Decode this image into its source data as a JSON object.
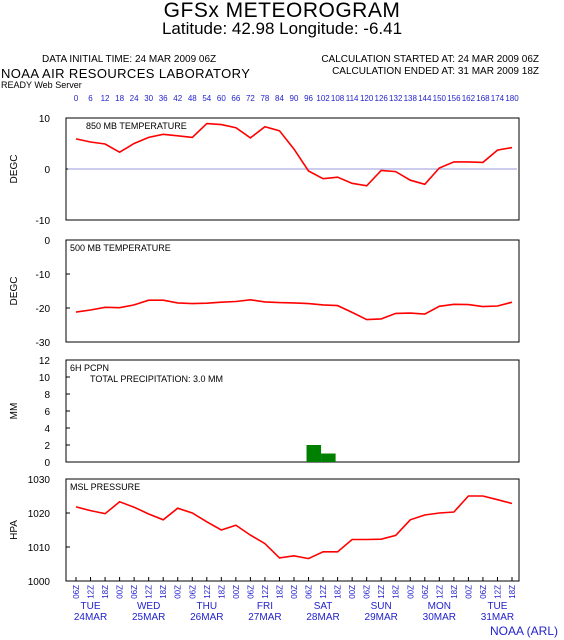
{
  "header": {
    "title": "GFSx METEOROGRAM",
    "coords": "Latitude: 42.98 Longitude:  -6.41",
    "init_time": "DATA INITIAL TIME: 24 MAR 2009 06Z",
    "calc_started": "CALCULATION STARTED AT: 24 MAR 2009 06Z",
    "calc_ended": "CALCULATION ENDED AT: 31 MAR 2009 18Z",
    "lab": "NOAA AIR RESOURCES LABORATORY",
    "server": "READY Web Server"
  },
  "footer": "NOAA (ARL)",
  "colors": {
    "series": "#ff0000",
    "precip": "#008000",
    "axis_text": "#2222cc",
    "zero_line": "#9999dd"
  },
  "chart_data": [
    {
      "type": "line",
      "title": "850 MB  TEMPERATURE",
      "ylabel": "DEGC",
      "ylim": [
        -10,
        10
      ],
      "yticks": [
        -10,
        0,
        10
      ],
      "zero_line": true,
      "forecast_hours": [
        0,
        6,
        12,
        18,
        24,
        30,
        36,
        42,
        48,
        54,
        60,
        66,
        72,
        78,
        84,
        90,
        96,
        102,
        108,
        114,
        120,
        126,
        132,
        138,
        144,
        150,
        156,
        162,
        168,
        174,
        180
      ],
      "values": [
        5.9,
        5.3,
        4.9,
        3.3,
        5.0,
        6.2,
        6.8,
        6.5,
        6.2,
        8.9,
        8.7,
        8.1,
        6.1,
        8.3,
        7.5,
        3.9,
        -0.4,
        -1.9,
        -1.6,
        -2.8,
        -3.3,
        -0.3,
        -0.5,
        -2.2,
        -3.0,
        0.2,
        1.4,
        1.4,
        1.3,
        3.7,
        4.2
      ]
    },
    {
      "type": "line",
      "title": "500 MB  TEMPERATURE",
      "ylabel": "DEGC",
      "ylim": [
        -30,
        0
      ],
      "yticks": [
        -30,
        -20,
        -10,
        0
      ],
      "forecast_hours": [
        0,
        6,
        12,
        18,
        24,
        30,
        36,
        42,
        48,
        54,
        60,
        66,
        72,
        78,
        84,
        90,
        96,
        102,
        108,
        114,
        120,
        126,
        132,
        138,
        144,
        150,
        156,
        162,
        168,
        174,
        180
      ],
      "values": [
        -21.2,
        -20.6,
        -19.8,
        -19.9,
        -19.1,
        -17.7,
        -17.7,
        -18.5,
        -18.7,
        -18.6,
        -18.3,
        -18.1,
        -17.6,
        -18.2,
        -18.4,
        -18.5,
        -18.7,
        -19.1,
        -19.3,
        -21.3,
        -23.4,
        -23.2,
        -21.6,
        -21.5,
        -21.8,
        -19.5,
        -18.9,
        -19.0,
        -19.6,
        -19.4,
        -18.3
      ]
    },
    {
      "type": "bar",
      "title": "6H PCPN",
      "ylabel": "MM",
      "ylim": [
        0,
        12
      ],
      "yticks": [
        0,
        2,
        4,
        6,
        8,
        10,
        12
      ],
      "annotation": "TOTAL PRECIPITATION:   3.0 MM",
      "forecast_hours": [
        96,
        102
      ],
      "values": [
        2.0,
        1.0
      ]
    },
    {
      "type": "line",
      "title": "MSL PRESSURE",
      "ylabel": "HPA",
      "ylim": [
        1000,
        1030
      ],
      "yticks": [
        1000,
        1010,
        1020,
        1030
      ],
      "forecast_hours": [
        0,
        6,
        12,
        18,
        24,
        30,
        36,
        42,
        48,
        54,
        60,
        66,
        72,
        78,
        84,
        90,
        96,
        102,
        108,
        114,
        120,
        126,
        132,
        138,
        144,
        150,
        156,
        162,
        168,
        174,
        180
      ],
      "values": [
        1021.8,
        1020.7,
        1019.8,
        1023.3,
        1021.7,
        1019.7,
        1018.0,
        1021.4,
        1020.0,
        1017.4,
        1015.0,
        1016.4,
        1013.5,
        1011.0,
        1006.8,
        1007.4,
        1006.6,
        1008.6,
        1008.6,
        1012.2,
        1012.2,
        1012.3,
        1013.4,
        1018.0,
        1019.4,
        1020.0,
        1020.3,
        1025.0,
        1025.0,
        1023.9,
        1022.8
      ]
    }
  ],
  "top_axis": {
    "labels": [
      "0",
      "6",
      "12",
      "18",
      "24",
      "30",
      "36",
      "42",
      "48",
      "54",
      "60",
      "66",
      "72",
      "78",
      "84",
      "90",
      "96",
      "102",
      "108",
      "114",
      "120",
      "126",
      "132",
      "138",
      "144",
      "150",
      "156",
      "162",
      "168",
      "174",
      "180"
    ]
  },
  "bottom_axis": {
    "hours": [
      "06Z",
      "12Z",
      "18Z",
      "00Z",
      "06Z",
      "12Z",
      "18Z",
      "00Z",
      "06Z",
      "12Z",
      "18Z",
      "00Z",
      "06Z",
      "12Z",
      "18Z",
      "00Z",
      "06Z",
      "12Z",
      "18Z",
      "00Z",
      "06Z",
      "12Z",
      "18Z",
      "00Z",
      "06Z",
      "12Z",
      "18Z",
      "00Z",
      "06Z",
      "12Z",
      "18Z"
    ],
    "days": [
      {
        "day": "TUE",
        "date": "24MAR",
        "at": 1
      },
      {
        "day": "WED",
        "date": "25MAR",
        "at": 5
      },
      {
        "day": "THU",
        "date": "26MAR",
        "at": 9
      },
      {
        "day": "FRI",
        "date": "27MAR",
        "at": 13
      },
      {
        "day": "SAT",
        "date": "28MAR",
        "at": 17
      },
      {
        "day": "SUN",
        "date": "29MAR",
        "at": 21
      },
      {
        "day": "MON",
        "date": "30MAR",
        "at": 25
      },
      {
        "day": "TUE",
        "date": "31MAR",
        "at": 29
      }
    ]
  }
}
